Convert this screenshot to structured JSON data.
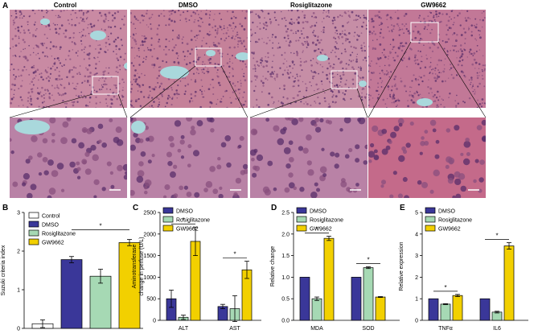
{
  "figure": {
    "panel_letters": [
      "A",
      "B",
      "C",
      "D",
      "E"
    ],
    "histology_columns": [
      "Control",
      "DMSO",
      "Rosiglitazone",
      "GW9662"
    ]
  },
  "colors": {
    "Control": "#ffffff",
    "DMSO": "#3a3799",
    "Rosiglitazone": "#a6d9b4",
    "GW9662": "#f2d000",
    "tissue_low": "#d9a6b8",
    "tissue_high": "#7a3c6e",
    "vessel": "#a9d8dc",
    "nucleus": "#5a2e6a"
  },
  "chart_data": [
    {
      "id": "B",
      "type": "bar",
      "ylabel": "Suzuki criteria index",
      "ylim": [
        0,
        3
      ],
      "yticks": [
        "0",
        "1",
        "2",
        "3"
      ],
      "categories": [
        "Control",
        "DMSO",
        "Rosiglitazone",
        "GW9662"
      ],
      "values": [
        0.12,
        1.78,
        1.35,
        2.22
      ],
      "errors": [
        0.1,
        0.08,
        0.18,
        0.08
      ],
      "legend": [
        "Control",
        "DMSO",
        "Rosiglitazone",
        "GW9662"
      ],
      "significance": "*"
    },
    {
      "id": "C",
      "type": "bar",
      "ylabel_line1": "Aminotransferase",
      "ylabel_line2": "change in perfuse (U/L)",
      "ylim": [
        0,
        2500
      ],
      "yticks": [
        "0",
        "500",
        "1000",
        "1500",
        "2000",
        "2500"
      ],
      "categories": [
        "ALT",
        "AST"
      ],
      "series": [
        {
          "name": "DMSO",
          "values": [
            500,
            320
          ],
          "errors": [
            200,
            50
          ]
        },
        {
          "name": "Rosiglitazone",
          "values": [
            70,
            270
          ],
          "errors": [
            50,
            300
          ]
        },
        {
          "name": "GW9662",
          "values": [
            1830,
            1170
          ],
          "errors": [
            330,
            200
          ]
        }
      ],
      "significance": [
        "*",
        "*"
      ]
    },
    {
      "id": "D",
      "type": "bar",
      "ylabel": "Relative change",
      "ylim": [
        0,
        2.5
      ],
      "yticks": [
        "0.0",
        "0.5",
        "1.0",
        "1.5",
        "2.0",
        "2.5"
      ],
      "categories": [
        "MDA",
        "SOD"
      ],
      "series": [
        {
          "name": "DMSO",
          "values": [
            1.0,
            1.0
          ],
          "errors": [
            0,
            0
          ]
        },
        {
          "name": "Rosiglitazone",
          "values": [
            0.5,
            1.22
          ],
          "errors": [
            0.04,
            0.02
          ]
        },
        {
          "name": "GW9662",
          "values": [
            1.9,
            0.54
          ],
          "errors": [
            0.05,
            0.01
          ]
        }
      ],
      "significance": [
        "*",
        "*"
      ]
    },
    {
      "id": "E",
      "type": "bar",
      "ylabel": "Relative expression",
      "ylim": [
        0,
        5
      ],
      "yticks": [
        "0",
        "1",
        "2",
        "3",
        "4",
        "5"
      ],
      "categories": [
        "TNFα",
        "IL6"
      ],
      "series": [
        {
          "name": "DMSO",
          "values": [
            1.0,
            1.0
          ],
          "errors": [
            0,
            0
          ]
        },
        {
          "name": "Rosiglitazone",
          "values": [
            0.75,
            0.38
          ],
          "errors": [
            0.02,
            0.04
          ]
        },
        {
          "name": "GW9662",
          "values": [
            1.15,
            3.45
          ],
          "errors": [
            0.05,
            0.15
          ]
        }
      ],
      "significance": [
        "*",
        "*"
      ]
    }
  ]
}
